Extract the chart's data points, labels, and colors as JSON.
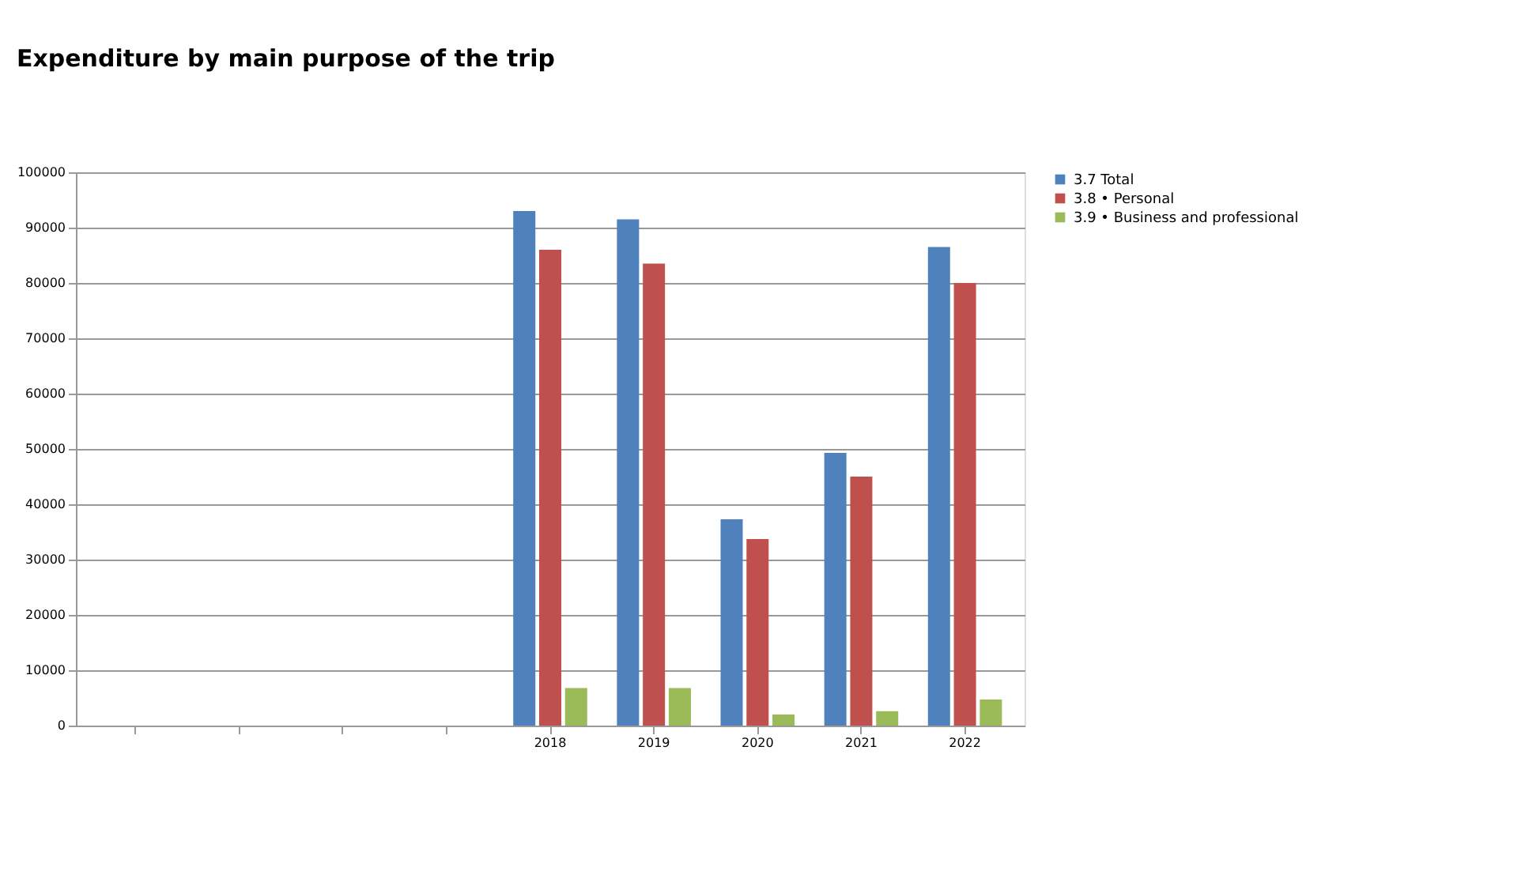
{
  "chart_data": {
    "type": "bar",
    "title": "Expenditure by main purpose of the trip",
    "categories": [
      null,
      null,
      null,
      null,
      "2018",
      "2019",
      "2020",
      "2021",
      "2022"
    ],
    "series": [
      {
        "name": "3.7 Total",
        "color": "#4f81bd",
        "values": [
          0,
          0,
          0,
          0,
          93000,
          91500,
          37300,
          49300,
          86500
        ]
      },
      {
        "name": "3.8 • Personal",
        "color": "#c0504d",
        "values": [
          0,
          0,
          0,
          0,
          86000,
          83500,
          33700,
          45000,
          80000
        ]
      },
      {
        "name": "3.9 • Business and professional",
        "color": "#9bbb59",
        "values": [
          0,
          0,
          0,
          0,
          6800,
          6800,
          2000,
          2600,
          4700
        ]
      }
    ],
    "ylim": [
      0,
      100000
    ],
    "yticks": [
      0,
      10000,
      20000,
      30000,
      40000,
      50000,
      60000,
      70000,
      80000,
      90000,
      100000
    ],
    "grid": "y",
    "legend": "right"
  }
}
